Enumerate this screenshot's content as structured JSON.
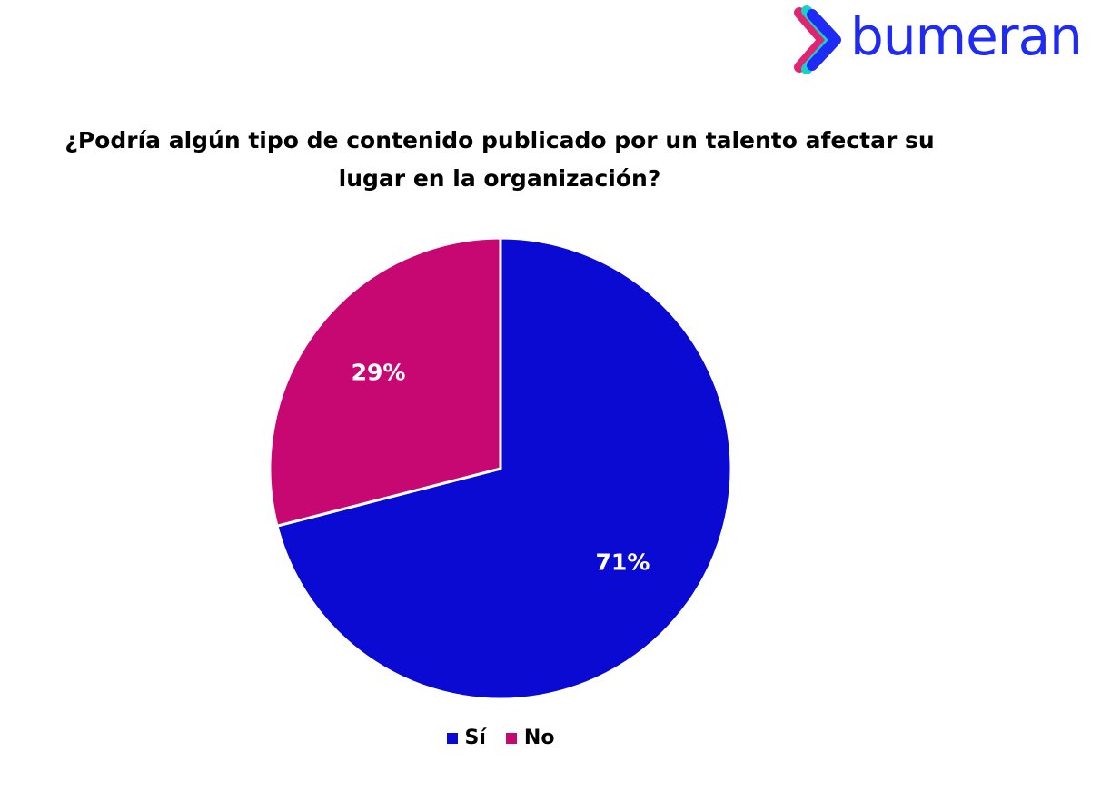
{
  "brand": {
    "name": "bumeran",
    "color": "#1f2bf5",
    "icon": "bumeran-chevron-logo",
    "icon_colors": [
      "#e0246f",
      "#16d1c5",
      "#1f2bf5"
    ]
  },
  "chart_data": {
    "type": "pie",
    "title_lines": [
      "¿Podría algún tipo de contenido publicado por un talento afectar su",
      "lugar en la organización?"
    ],
    "slices": [
      {
        "label": "Sí",
        "value": 71,
        "value_label": "71%",
        "color": "#0a0ad2"
      },
      {
        "label": "No",
        "value": 29,
        "value_label": "29%",
        "color": "#c70872"
      }
    ],
    "start_angle_deg": 0,
    "direction": "clockwise",
    "legend_position": "bottom",
    "data_label_color": "#ffffff"
  }
}
